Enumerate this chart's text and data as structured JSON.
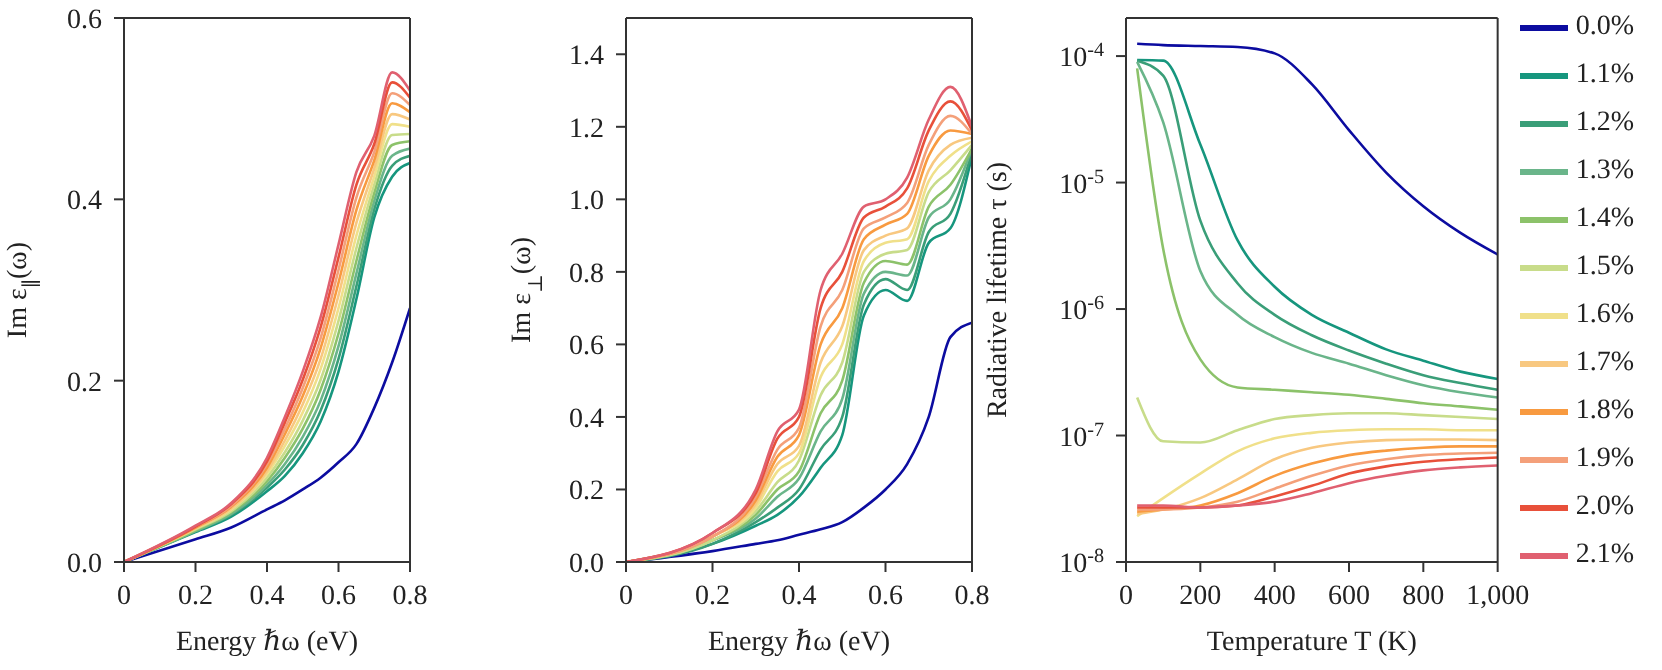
{
  "chart_data": [
    {
      "type": "line",
      "xlabel": "Energy ℏω (eV)",
      "ylabel": "Im ε$_{∥}$(ω)",
      "x": [
        0,
        0.2,
        0.3,
        0.4,
        0.45,
        0.5,
        0.55,
        0.6,
        0.65,
        0.7,
        0.75,
        0.8
      ],
      "xlim": [
        0,
        0.8
      ],
      "xticks": [
        0,
        0.2,
        0.4,
        0.6,
        0.8
      ],
      "ylim": [
        0,
        0.6
      ],
      "yticks": [
        {
          "value": 0,
          "label": "0.0"
        },
        0.2,
        0.4,
        0.6
      ],
      "grid": false,
      "legend": false,
      "marker": "none",
      "line_style": "solid",
      "series": [
        {
          "color": "#0c0ca0",
          "values": [
            0,
            0.025,
            0.038,
            0.058,
            0.068,
            0.08,
            0.093,
            0.11,
            0.13,
            0.17,
            0.22,
            0.28
          ]
        },
        {
          "color": "#16967e",
          "values": [
            0,
            0.033,
            0.05,
            0.078,
            0.095,
            0.12,
            0.155,
            0.21,
            0.29,
            0.38,
            0.425,
            0.44
          ]
        },
        {
          "color": "#3a9e78",
          "values": [
            0,
            0.034,
            0.052,
            0.082,
            0.102,
            0.129,
            0.167,
            0.224,
            0.304,
            0.389,
            0.437,
            0.448
          ]
        },
        {
          "color": "#6ab58a",
          "values": [
            0,
            0.034,
            0.053,
            0.085,
            0.108,
            0.138,
            0.178,
            0.238,
            0.318,
            0.398,
            0.448,
            0.456
          ]
        },
        {
          "color": "#8cc26a",
          "values": [
            0,
            0.035,
            0.055,
            0.089,
            0.115,
            0.147,
            0.19,
            0.252,
            0.332,
            0.407,
            0.46,
            0.464
          ]
        },
        {
          "color": "#c8dc8a",
          "values": [
            0,
            0.036,
            0.056,
            0.093,
            0.121,
            0.156,
            0.201,
            0.266,
            0.346,
            0.416,
            0.471,
            0.472
          ]
        },
        {
          "color": "#f0e08a",
          "values": [
            0,
            0.037,
            0.058,
            0.097,
            0.128,
            0.165,
            0.213,
            0.28,
            0.36,
            0.425,
            0.483,
            0.48
          ]
        },
        {
          "color": "#f8c880",
          "values": [
            0,
            0.037,
            0.059,
            0.1,
            0.134,
            0.174,
            0.224,
            0.294,
            0.374,
            0.434,
            0.494,
            0.488
          ]
        },
        {
          "color": "#f89a40",
          "values": [
            0,
            0.038,
            0.061,
            0.104,
            0.141,
            0.183,
            0.236,
            0.308,
            0.388,
            0.443,
            0.506,
            0.496
          ]
        },
        {
          "color": "#f4a07a",
          "values": [
            0,
            0.039,
            0.062,
            0.108,
            0.147,
            0.192,
            0.247,
            0.322,
            0.402,
            0.452,
            0.517,
            0.504
          ]
        },
        {
          "color": "#e8503a",
          "values": [
            0,
            0.039,
            0.064,
            0.111,
            0.154,
            0.201,
            0.259,
            0.336,
            0.416,
            0.461,
            0.529,
            0.512
          ]
        },
        {
          "color": "#e06070",
          "values": [
            0,
            0.04,
            0.065,
            0.115,
            0.16,
            0.21,
            0.27,
            0.35,
            0.43,
            0.47,
            0.54,
            0.52
          ]
        }
      ]
    },
    {
      "type": "line",
      "xlabel": "Energy ℏω (eV)",
      "ylabel": "Im ε$_{⊥}$(ω)",
      "x": [
        0,
        0.2,
        0.3,
        0.35,
        0.4,
        0.45,
        0.5,
        0.55,
        0.6,
        0.65,
        0.7,
        0.75,
        0.8
      ],
      "xlim": [
        0,
        0.8
      ],
      "xticks": [
        0,
        0.2,
        0.4,
        0.6,
        0.8
      ],
      "ylim": [
        0,
        1.5
      ],
      "yticks": [
        {
          "value": 0,
          "label": "0.0"
        },
        0.2,
        0.4,
        0.6,
        0.8,
        {
          "value": 1,
          "label": "1.0"
        },
        1.2,
        1.4
      ],
      "grid": false,
      "legend": false,
      "marker": "none",
      "line_style": "solid",
      "series": [
        {
          "color": "#0c0ca0",
          "values": [
            0,
            0.03,
            0.05,
            0.06,
            0.075,
            0.09,
            0.11,
            0.15,
            0.2,
            0.27,
            0.4,
            0.62,
            0.66
          ]
        },
        {
          "color": "#16967e",
          "values": [
            0,
            0.05,
            0.1,
            0.13,
            0.18,
            0.26,
            0.35,
            0.68,
            0.75,
            0.72,
            0.88,
            0.92,
            1.12
          ]
        },
        {
          "color": "#3a9e78",
          "values": [
            0,
            0.05,
            0.11,
            0.15,
            0.2,
            0.31,
            0.4,
            0.71,
            0.78,
            0.75,
            0.91,
            0.96,
            1.13
          ]
        },
        {
          "color": "#6ab58a",
          "values": [
            0,
            0.06,
            0.12,
            0.18,
            0.23,
            0.36,
            0.45,
            0.74,
            0.8,
            0.79,
            0.95,
            1.0,
            1.14
          ]
        },
        {
          "color": "#8cc26a",
          "values": [
            0,
            0.06,
            0.13,
            0.2,
            0.25,
            0.41,
            0.5,
            0.77,
            0.83,
            0.82,
            0.98,
            1.04,
            1.14
          ]
        },
        {
          "color": "#c8dc8a",
          "values": [
            0,
            0.06,
            0.14,
            0.22,
            0.28,
            0.46,
            0.55,
            0.8,
            0.85,
            0.86,
            1.02,
            1.08,
            1.15
          ]
        },
        {
          "color": "#f0e08a",
          "values": [
            0,
            0.07,
            0.15,
            0.25,
            0.3,
            0.51,
            0.6,
            0.83,
            0.88,
            0.89,
            1.05,
            1.12,
            1.16
          ]
        },
        {
          "color": "#f8c880",
          "values": [
            0,
            0.07,
            0.16,
            0.27,
            0.32,
            0.55,
            0.65,
            0.86,
            0.9,
            0.92,
            1.08,
            1.15,
            1.17
          ]
        },
        {
          "color": "#f89a40",
          "values": [
            0,
            0.07,
            0.17,
            0.29,
            0.35,
            0.6,
            0.7,
            0.89,
            0.93,
            0.96,
            1.12,
            1.19,
            1.18
          ]
        },
        {
          "color": "#f4a07a",
          "values": [
            0,
            0.07,
            0.18,
            0.31,
            0.37,
            0.65,
            0.75,
            0.92,
            0.95,
            0.99,
            1.15,
            1.23,
            1.18
          ]
        },
        {
          "color": "#e8503a",
          "values": [
            0,
            0.08,
            0.19,
            0.34,
            0.4,
            0.7,
            0.8,
            0.95,
            0.98,
            1.03,
            1.19,
            1.27,
            1.19
          ]
        },
        {
          "color": "#e06070",
          "values": [
            0,
            0.08,
            0.2,
            0.36,
            0.42,
            0.75,
            0.85,
            0.98,
            1.0,
            1.06,
            1.22,
            1.31,
            1.2
          ]
        }
      ]
    },
    {
      "type": "line",
      "xlabel": "Temperature T (K)",
      "ylabel": "Radiative lifetime τ (s)",
      "x": [
        30,
        100,
        200,
        300,
        400,
        500,
        600,
        700,
        800,
        900,
        1000
      ],
      "xlim": [
        0,
        1000
      ],
      "xticks": [
        0,
        200,
        400,
        600,
        800,
        {
          "value": 1000,
          "label": "1,000"
        }
      ],
      "log": "y",
      "ylim": [
        1e-08,
        0.0002
      ],
      "yticks": [
        {
          "value": 1e-08,
          "label": "10$^{-8}$"
        },
        {
          "value": 1e-07,
          "label": "10$^{-7}$"
        },
        {
          "value": 1e-06,
          "label": "10$^{-6}$"
        },
        {
          "value": 1e-05,
          "label": "10$^{-5}$"
        },
        {
          "value": 0.0001,
          "label": "10$^{-4}$"
        }
      ],
      "grid": false,
      "legend": "right",
      "marker": "none",
      "line_style": "solid",
      "series": [
        {
          "name": "0.0%",
          "color": "#0c0ca0",
          "values": [
            0.000125,
            0.000122,
            0.00012,
            0.000118,
            0.000105,
            6e-05,
            2.6e-05,
            1.2e-05,
            6.5e-06,
            4e-06,
            2.7e-06
          ]
        },
        {
          "name": "1.1%",
          "color": "#16967e",
          "values": [
            9.3e-05,
            9.2e-05,
            2e-05,
            3.5e-06,
            1.5e-06,
            9e-07,
            6.5e-07,
            4.8e-07,
            3.9e-07,
            3.2e-07,
            2.8e-07
          ]
        },
        {
          "name": "1.2%",
          "color": "#3a9e78",
          "values": [
            9.2e-05,
            7e-05,
            5e-06,
            1.6e-06,
            9e-07,
            6.2e-07,
            4.7e-07,
            3.7e-07,
            3e-07,
            2.6e-07,
            2.3e-07
          ]
        },
        {
          "name": "1.3%",
          "color": "#6ab58a",
          "values": [
            9e-05,
            3e-05,
            2e-06,
            9e-07,
            6e-07,
            4.5e-07,
            3.7e-07,
            3e-07,
            2.5e-07,
            2.2e-07,
            2e-07
          ]
        },
        {
          "name": "1.4%",
          "color": "#8cc26a",
          "values": [
            8e-05,
            3e-06,
            4e-07,
            2.4e-07,
            2.3e-07,
            2.2e-07,
            2.1e-07,
            1.95e-07,
            1.8e-07,
            1.7e-07,
            1.6e-07
          ]
        },
        {
          "name": "1.5%",
          "color": "#c8dc8a",
          "values": [
            2e-07,
            9e-08,
            8.8e-08,
            1.1e-07,
            1.35e-07,
            1.45e-07,
            1.5e-07,
            1.5e-07,
            1.45e-07,
            1.4e-07,
            1.35e-07
          ]
        },
        {
          "name": "1.6%",
          "color": "#f0e08a",
          "values": [
            2.3e-08,
            3.2e-08,
            5e-08,
            7.5e-08,
            9.5e-08,
            1.05e-07,
            1.1e-07,
            1.12e-07,
            1.12e-07,
            1.1e-07,
            1.1e-07
          ]
        },
        {
          "name": "1.7%",
          "color": "#f8c880",
          "values": [
            2.4e-08,
            2.6e-08,
            3.2e-08,
            4.5e-08,
            6.5e-08,
            8e-08,
            8.8e-08,
            9.2e-08,
            9.3e-08,
            9.3e-08,
            9.2e-08
          ]
        },
        {
          "name": "1.8%",
          "color": "#f89a40",
          "values": [
            2.5e-08,
            2.6e-08,
            2.8e-08,
            3.5e-08,
            4.8e-08,
            6e-08,
            7e-08,
            7.6e-08,
            8e-08,
            8.2e-08,
            8.2e-08
          ]
        },
        {
          "name": "1.9%",
          "color": "#f4a07a",
          "values": [
            2.6e-08,
            2.6e-08,
            2.7e-08,
            3e-08,
            3.8e-08,
            4.8e-08,
            5.8e-08,
            6.5e-08,
            7e-08,
            7.2e-08,
            7.3e-08
          ]
        },
        {
          "name": "2.0%",
          "color": "#e8503a",
          "values": [
            2.7e-08,
            2.7e-08,
            2.7e-08,
            2.8e-08,
            3.3e-08,
            4e-08,
            5e-08,
            5.7e-08,
            6.2e-08,
            6.5e-08,
            6.7e-08
          ]
        },
        {
          "name": "2.1%",
          "color": "#e06070",
          "values": [
            2.8e-08,
            2.8e-08,
            2.7e-08,
            2.8e-08,
            3e-08,
            3.5e-08,
            4.2e-08,
            4.8e-08,
            5.3e-08,
            5.6e-08,
            5.8e-08
          ]
        }
      ]
    }
  ]
}
